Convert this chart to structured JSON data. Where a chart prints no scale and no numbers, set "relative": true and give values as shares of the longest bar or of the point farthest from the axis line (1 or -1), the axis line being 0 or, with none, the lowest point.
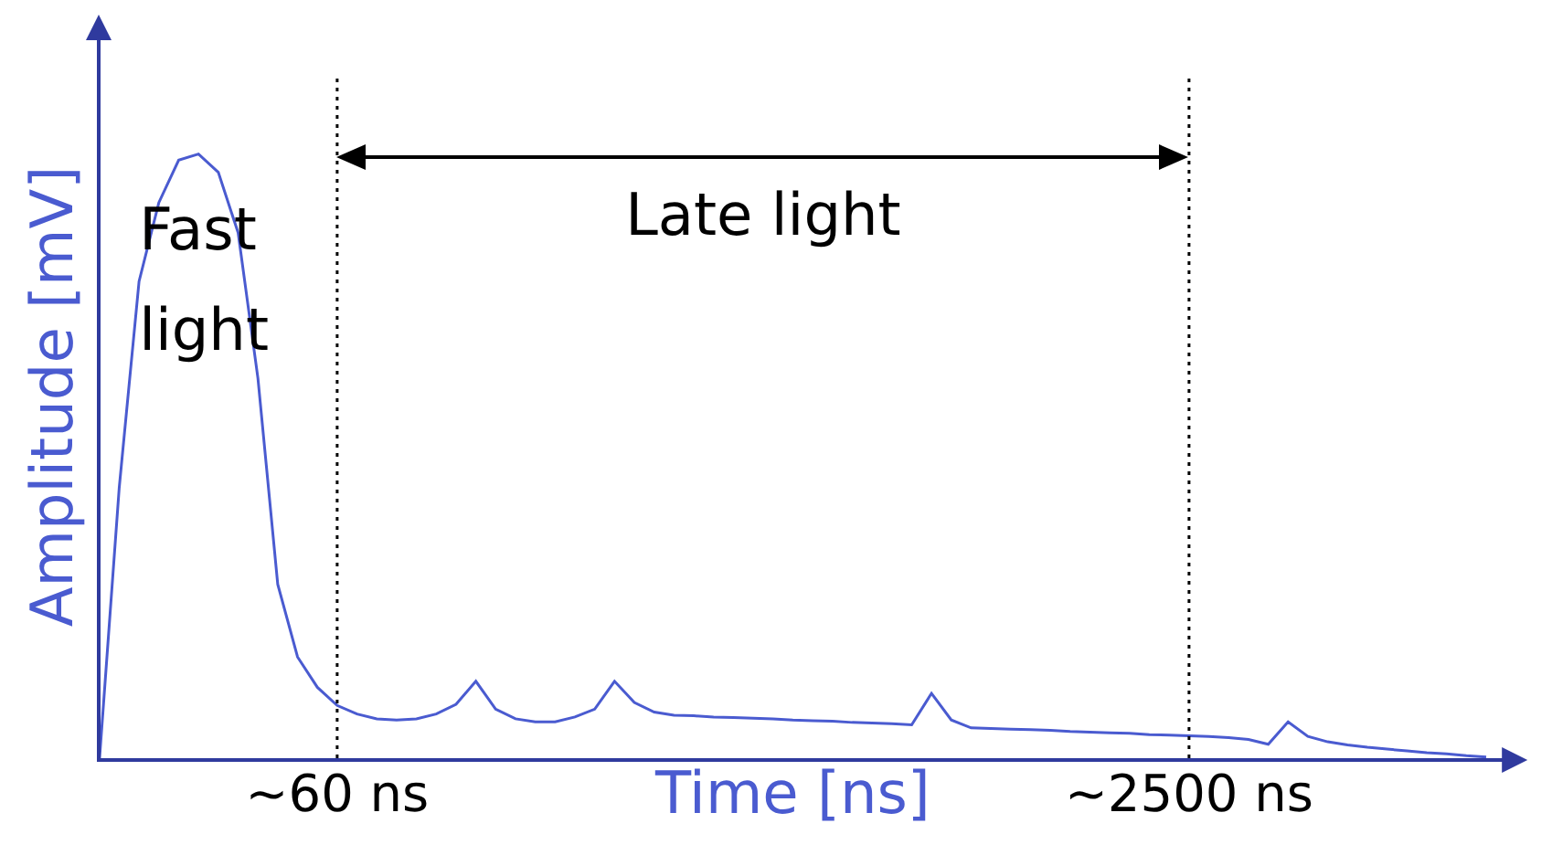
{
  "chart_data": {
    "type": "line",
    "relative": true,
    "xlabel": "Time [ns]",
    "ylabel": "Amplitude [mV]",
    "categories": [
      null,
      null,
      null,
      null,
      null,
      null,
      null,
      null,
      null,
      null,
      null,
      null,
      "~60 ns",
      null,
      null,
      null,
      null,
      null,
      null,
      null,
      null,
      null,
      null,
      null,
      null,
      null,
      null,
      null,
      null,
      null,
      null,
      null,
      null,
      null,
      null,
      null,
      null,
      null,
      null,
      null,
      null,
      null,
      null,
      null,
      null,
      null,
      null,
      null,
      null,
      null,
      null,
      null,
      null,
      null,
      null,
      "~2500 ns",
      null,
      null,
      null,
      null,
      null,
      null,
      null,
      null,
      null,
      null,
      null,
      null,
      null,
      null,
      null
    ],
    "series": [
      {
        "color": "#4a5bd0",
        "values": [
          0,
          0.45,
          0.79,
          0.92,
          0.99,
          1,
          0.97,
          0.87,
          0.63,
          0.29,
          0.17,
          0.12,
          0.09,
          0.076,
          0.068,
          0.066,
          0.068,
          0.076,
          0.092,
          0.13,
          0.084,
          0.068,
          0.063,
          0.063,
          0.071,
          0.084,
          0.13,
          0.095,
          0.079,
          0.074,
          0.073,
          0.071,
          0.07,
          0.069,
          0.068,
          0.066,
          0.065,
          0.064,
          0.062,
          0.061,
          0.06,
          0.058,
          0.11,
          0.066,
          0.053,
          0.052,
          0.051,
          0.05,
          0.049,
          0.047,
          0.046,
          0.045,
          0.044,
          0.042,
          0.041,
          0.04,
          0.039,
          0.037,
          0.034,
          0.026,
          0.063,
          0.039,
          0.03,
          0.025,
          0.021,
          0.018,
          0.015,
          0.012,
          0.01,
          0.007,
          0.005
        ]
      }
    ],
    "ref_lines": [
      {
        "axis": "x",
        "value": "~60 ns",
        "color": "#000000",
        "line_style": "dotted"
      },
      {
        "axis": "x",
        "value": "~2500 ns",
        "color": "#000000",
        "line_style": "dotted"
      }
    ],
    "annotations": [
      "Fast light",
      "Late light"
    ],
    "grid": false,
    "legend": false,
    "marker": "none",
    "line_style": "solid"
  }
}
